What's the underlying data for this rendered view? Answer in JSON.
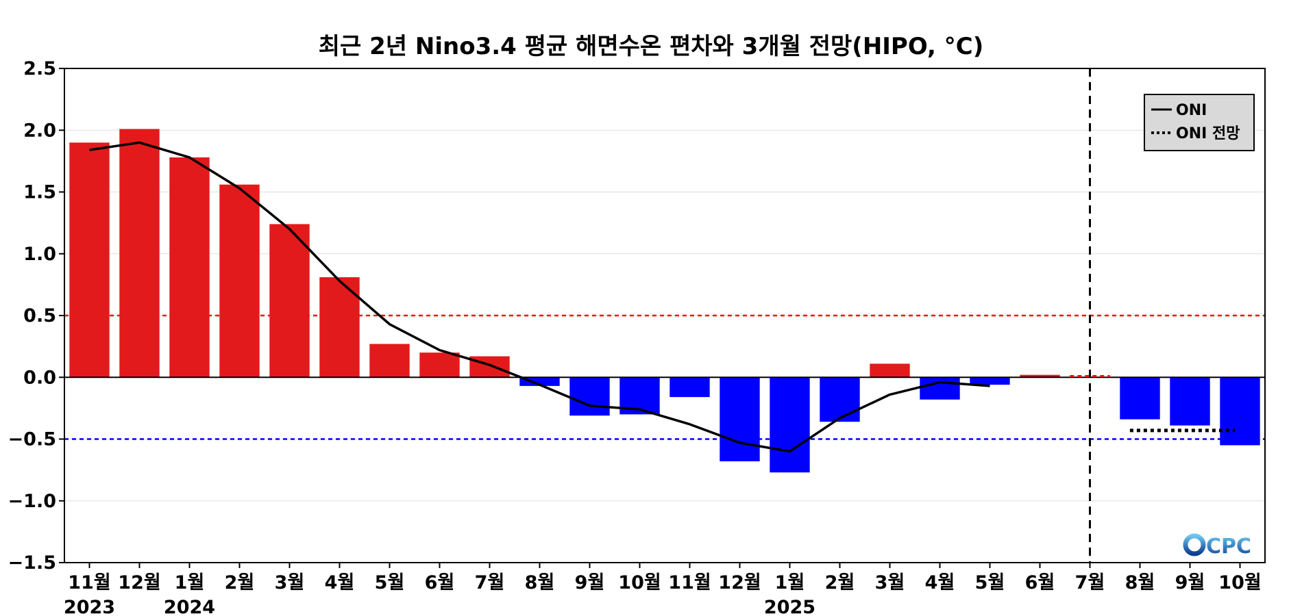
{
  "chart_data": {
    "type": "bar",
    "title": "최근 2년 Nino3.4 평균 해면수온 편차와 3개월 전망(HIPO, °C)",
    "xlabel": "",
    "ylabel": "",
    "ylim": [
      -1.5,
      2.5
    ],
    "yticks": [
      2.5,
      2.0,
      1.5,
      1.0,
      0.5,
      0.0,
      -0.5,
      -1.0,
      -1.5
    ],
    "ytick_labels": [
      "2.5",
      "2.0",
      "1.5",
      "1.0",
      "0.5",
      "0.0",
      "−0.5",
      "−1.0",
      "−1.5"
    ],
    "categories": [
      "11월",
      "12월",
      "1월",
      "2월",
      "3월",
      "4월",
      "5월",
      "6월",
      "7월",
      "8월",
      "9월",
      "10월",
      "11월",
      "12월",
      "1월",
      "2월",
      "3월",
      "4월",
      "5월",
      "6월",
      "7월",
      "8월",
      "9월",
      "10월"
    ],
    "year_labels": [
      {
        "index": 0,
        "label": "2023"
      },
      {
        "index": 2,
        "label": "2024"
      },
      {
        "index": 14,
        "label": "2025"
      }
    ],
    "series": [
      {
        "type": "bar",
        "values": [
          1.9,
          2.01,
          1.78,
          1.56,
          1.24,
          0.81,
          0.27,
          0.2,
          0.17,
          -0.07,
          -0.31,
          -0.3,
          -0.16,
          -0.68,
          -0.77,
          -0.36,
          0.11,
          -0.18,
          -0.06,
          0.02,
          null,
          -0.34,
          -0.39,
          -0.55
        ]
      },
      {
        "type": "line",
        "name": "ONI",
        "values": [
          1.84,
          1.9,
          1.78,
          1.53,
          1.2,
          0.78,
          0.43,
          0.22,
          0.1,
          -0.06,
          -0.23,
          -0.26,
          -0.38,
          -0.53,
          -0.6,
          -0.33,
          -0.14,
          -0.04,
          -0.07,
          null,
          null,
          null,
          null,
          null
        ]
      },
      {
        "type": "line-dotted",
        "name": "ONI 전망",
        "x_start": 20.8,
        "x_end": 22.9,
        "value": -0.43
      }
    ],
    "positive_color": "#e31a1c",
    "negative_color": "#0000ff",
    "threshold_lines": [
      {
        "value": 0.5,
        "color": "#ff0000",
        "style": "dashed"
      },
      {
        "value": -0.5,
        "color": "#0000ff",
        "style": "dashed"
      }
    ],
    "forecast_divider_index": 20,
    "forecast_stub": {
      "x_start": 19.6,
      "x_end": 20.4,
      "value": 0.01,
      "color": "#ff0000"
    },
    "grid": true,
    "legend_position": "top-right",
    "legend": [
      "ONI",
      "ONI 전망"
    ],
    "logo": "CPC"
  }
}
